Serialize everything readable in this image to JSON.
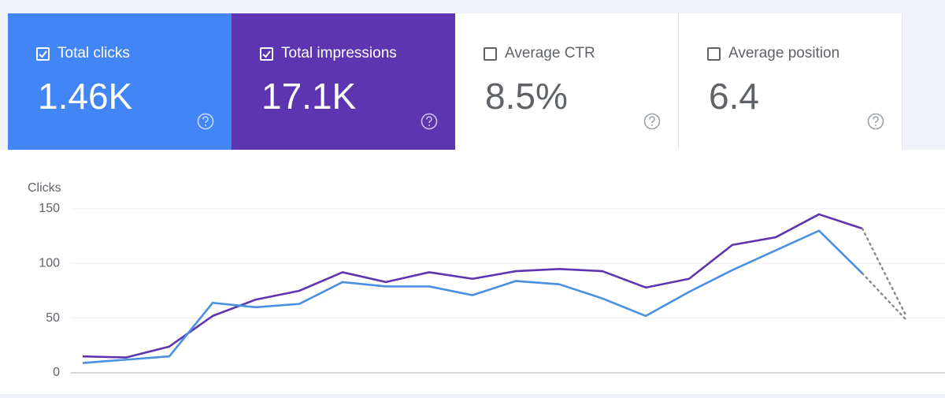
{
  "cards": [
    {
      "label": "Total clicks",
      "value": "1.46K",
      "checked": true,
      "color": "#4285f4"
    },
    {
      "label": "Total impressions",
      "value": "17.1K",
      "checked": true,
      "color": "#5e35b1"
    },
    {
      "label": "Average CTR",
      "value": "8.5%",
      "checked": false,
      "color": "#ffffff"
    },
    {
      "label": "Average position",
      "value": "6.4",
      "checked": false,
      "color": "#ffffff"
    }
  ],
  "chart_data": {
    "type": "line",
    "ylabel": "Clicks",
    "ylim": [
      0,
      150
    ],
    "yticks": [
      0,
      50,
      100,
      150
    ],
    "grid": true,
    "last_segment_dotted": true,
    "series": [
      {
        "color": "#5e35b1",
        "values": [
          15,
          14,
          24,
          52,
          67,
          75,
          92,
          83,
          92,
          86,
          93,
          95,
          93,
          78,
          86,
          117,
          124,
          145,
          132,
          53
        ]
      },
      {
        "color": "#4a90e2",
        "values": [
          9,
          12,
          15,
          64,
          60,
          63,
          83,
          79,
          79,
          71,
          84,
          81,
          68,
          52,
          74,
          94,
          112,
          130,
          91,
          49
        ]
      }
    ]
  }
}
